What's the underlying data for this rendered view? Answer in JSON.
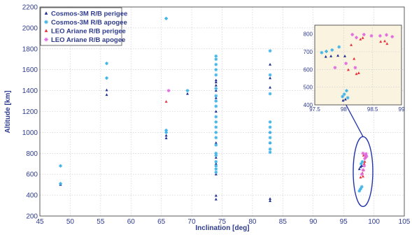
{
  "chart_data": {
    "type": "scatter",
    "title": "",
    "xlabel": "Inclination [deg]",
    "ylabel": "Altitude [km]",
    "xlim": [
      45,
      105
    ],
    "ylim": [
      200,
      2200
    ],
    "xticks": [
      45,
      50,
      55,
      60,
      65,
      70,
      75,
      80,
      85,
      90,
      95,
      100,
      105
    ],
    "yticks": [
      200,
      400,
      600,
      800,
      1000,
      1200,
      1400,
      1600,
      1800,
      2000,
      2200
    ],
    "grid": true,
    "legend_position": "top-left",
    "series": [
      {
        "name": "Cosmos-3M R/B perigee",
        "marker": "triangle",
        "color": "#1f2f8f",
        "points": [
          [
            48.4,
            500
          ],
          [
            56,
            1360
          ],
          [
            56,
            1405
          ],
          [
            65.8,
            945
          ],
          [
            65.8,
            970
          ],
          [
            69.3,
            1370
          ],
          [
            74,
            360
          ],
          [
            74,
            395
          ],
          [
            74,
            600
          ],
          [
            74,
            700
          ],
          [
            74,
            760
          ],
          [
            74,
            900
          ],
          [
            74,
            1200
          ],
          [
            74,
            1330
          ],
          [
            74,
            1400
          ],
          [
            74,
            1450
          ],
          [
            74,
            1480
          ],
          [
            74,
            1500
          ],
          [
            82.9,
            345
          ],
          [
            82.9,
            365
          ],
          [
            82.9,
            900
          ],
          [
            82.9,
            1000
          ],
          [
            82.9,
            1430
          ],
          [
            82.9,
            1520
          ],
          [
            82.9,
            1650
          ],
          [
            97.6,
            650
          ],
          [
            97.8,
            670
          ],
          [
            98.0,
            680
          ]
        ]
      },
      {
        "name": "Cosmos-3M R/B apogee",
        "marker": "star",
        "color": "#3fb3e8",
        "points": [
          [
            48.4,
            510
          ],
          [
            48.4,
            680
          ],
          [
            56,
            1520
          ],
          [
            56,
            1660
          ],
          [
            65.8,
            1000
          ],
          [
            65.8,
            1020
          ],
          [
            65.8,
            2090
          ],
          [
            69.3,
            1400
          ],
          [
            74,
            620
          ],
          [
            74,
            650
          ],
          [
            74,
            680
          ],
          [
            74,
            720
          ],
          [
            74,
            780
          ],
          [
            74,
            800
          ],
          [
            74,
            880
          ],
          [
            74,
            950
          ],
          [
            74,
            1000
          ],
          [
            74,
            1050
          ],
          [
            74,
            1100
          ],
          [
            74,
            1150
          ],
          [
            74,
            1250
          ],
          [
            74,
            1300
          ],
          [
            74,
            1350
          ],
          [
            74,
            1420
          ],
          [
            74,
            1550
          ],
          [
            74,
            1600
          ],
          [
            74,
            1650
          ],
          [
            74,
            1700
          ],
          [
            74,
            1730
          ],
          [
            82.9,
            810
          ],
          [
            82.9,
            840
          ],
          [
            82.9,
            900
          ],
          [
            82.9,
            950
          ],
          [
            82.9,
            1000
          ],
          [
            82.9,
            1050
          ],
          [
            82.9,
            1100
          ],
          [
            82.9,
            1370
          ],
          [
            82.9,
            1550
          ],
          [
            82.9,
            1780
          ],
          [
            97.6,
            440
          ],
          [
            97.8,
            460
          ],
          [
            98.0,
            480
          ],
          [
            97.9,
            700
          ],
          [
            98.1,
            720
          ]
        ]
      },
      {
        "name": "LEO Ariane R/B perigee",
        "marker": "triangle",
        "color": "#e8323c",
        "points": [
          [
            65.8,
            1295
          ],
          [
            97.8,
            570
          ],
          [
            98.2,
            580
          ],
          [
            98.1,
            610
          ],
          [
            98.3,
            640
          ],
          [
            98.4,
            700
          ],
          [
            98.5,
            720
          ],
          [
            98.6,
            760
          ],
          [
            98.3,
            780
          ]
        ]
      },
      {
        "name": "LEO Ariane R/B apogee",
        "marker": "star",
        "color": "#e06adf",
        "points": [
          [
            66.2,
            1400
          ],
          [
            98.0,
            600
          ],
          [
            98.2,
            640
          ],
          [
            98.4,
            680
          ],
          [
            98.5,
            750
          ],
          [
            98.6,
            780
          ],
          [
            98.7,
            795
          ],
          [
            98.2,
            800
          ],
          [
            98.8,
            770
          ]
        ]
      }
    ],
    "inset": {
      "xlim": [
        97.5,
        99
      ],
      "ylim": [
        400,
        850
      ],
      "xticks": [
        97.5,
        98,
        98.5,
        99
      ],
      "yticks": [
        400,
        500,
        600,
        700,
        800
      ],
      "background": "#faf3e0",
      "series": [
        {
          "name": "Cosmos-3M R/B perigee",
          "marker": "triangle",
          "color": "#1f2f8f",
          "points": [
            [
              97.69,
              672
            ],
            [
              97.78,
              675
            ],
            [
              97.9,
              678
            ],
            [
              98.02,
              675
            ],
            [
              97.99,
              425
            ],
            [
              98.03,
              431
            ]
          ]
        },
        {
          "name": "Cosmos-3M R/B apogee",
          "marker": "star",
          "color": "#3fb3e8",
          "points": [
            [
              97.62,
              695
            ],
            [
              97.7,
              702
            ],
            [
              97.8,
              710
            ],
            [
              97.92,
              727
            ],
            [
              98.01,
              460
            ],
            [
              98.05,
              480
            ],
            [
              97.98,
              447
            ],
            [
              98.07,
              440
            ]
          ]
        },
        {
          "name": "LEO Ariane R/B perigee",
          "marker": "triangle",
          "color": "#e8323c",
          "points": [
            [
              98.13,
              738
            ],
            [
              98.18,
              660
            ],
            [
              98.22,
              575
            ],
            [
              98.26,
              580
            ],
            [
              98.08,
              598
            ],
            [
              98.29,
              770
            ],
            [
              98.33,
              778
            ],
            [
              98.64,
              757
            ],
            [
              98.71,
              760
            ],
            [
              98.75,
              745
            ]
          ]
        },
        {
          "name": "LEO Ariane R/B apogee",
          "marker": "star",
          "color": "#e06adf",
          "points": [
            [
              97.85,
              610
            ],
            [
              98.04,
              634
            ],
            [
              98.2,
              610
            ],
            [
              98.15,
              797
            ],
            [
              98.22,
              780
            ],
            [
              98.35,
              797
            ],
            [
              98.48,
              790
            ],
            [
              98.63,
              790
            ],
            [
              98.74,
              795
            ],
            [
              98.84,
              785
            ]
          ]
        }
      ]
    },
    "callout_ellipse_center": [
      98.2,
      625
    ]
  }
}
